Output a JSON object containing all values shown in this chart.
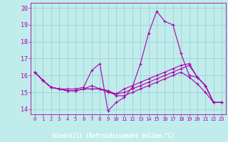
{
  "xlabel": "Windchill (Refroidissement éolien,°C)",
  "xlim": [
    -0.5,
    23.5
  ],
  "ylim": [
    13.7,
    20.3
  ],
  "yticks": [
    14,
    15,
    16,
    17,
    18,
    19,
    20
  ],
  "xticks": [
    0,
    1,
    2,
    3,
    4,
    5,
    6,
    7,
    8,
    9,
    10,
    11,
    12,
    13,
    14,
    15,
    16,
    17,
    18,
    19,
    20,
    21,
    22,
    23
  ],
  "bg_color": "#c0ecec",
  "line_color": "#aa00aa",
  "grid_color": "#99cccc",
  "xlabel_bg": "#7744aa",
  "lines": [
    [
      16.2,
      15.7,
      15.3,
      15.2,
      15.2,
      15.2,
      15.3,
      16.3,
      16.7,
      13.9,
      14.4,
      14.7,
      15.3,
      16.7,
      18.5,
      19.8,
      19.2,
      19.0,
      17.3,
      16.0,
      15.9,
      15.4,
      14.4,
      14.4
    ],
    [
      16.2,
      15.7,
      15.3,
      15.2,
      15.1,
      15.1,
      15.2,
      15.2,
      15.2,
      15.0,
      14.9,
      15.2,
      15.4,
      15.6,
      15.8,
      16.0,
      16.2,
      16.4,
      16.6,
      16.7,
      15.9,
      15.4,
      14.4,
      14.4
    ],
    [
      16.2,
      15.7,
      15.3,
      15.2,
      15.1,
      15.1,
      15.2,
      15.4,
      15.2,
      15.1,
      14.8,
      14.8,
      15.0,
      15.2,
      15.4,
      15.6,
      15.8,
      16.0,
      16.2,
      15.9,
      15.5,
      15.0,
      14.4,
      14.4
    ],
    [
      16.2,
      15.7,
      15.3,
      15.2,
      15.1,
      15.1,
      15.2,
      15.2,
      15.2,
      15.1,
      14.9,
      15.0,
      15.2,
      15.4,
      15.6,
      15.8,
      16.0,
      16.2,
      16.4,
      16.6,
      15.9,
      15.4,
      14.4,
      14.4
    ]
  ]
}
